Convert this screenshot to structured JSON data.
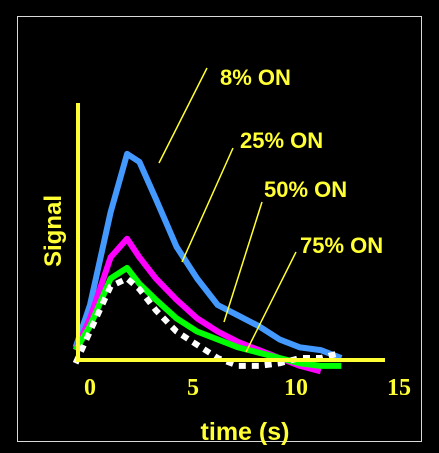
{
  "chart_data": {
    "type": "line",
    "title": "",
    "xlabel": "time (s)",
    "ylabel": "Signal",
    "xlim": [
      0,
      15
    ],
    "ylim": [
      0,
      1
    ],
    "x_ticks": [
      "0",
      "5",
      "10",
      "15"
    ],
    "grid": false,
    "series": [
      {
        "name": "8% ON",
        "color": "#4499ff",
        "x": [
          -0.7,
          0.0,
          1.0,
          1.8,
          2.4,
          3.2,
          4.2,
          5.2,
          6.2,
          7.2,
          8.2,
          9.2,
          10.2,
          11.2,
          12.2
        ],
        "y": [
          0.04,
          0.2,
          0.55,
          0.77,
          0.74,
          0.6,
          0.42,
          0.3,
          0.2,
          0.16,
          0.12,
          0.07,
          0.04,
          0.03,
          0.0
        ]
      },
      {
        "name": "25% ON",
        "color": "#ff00ff",
        "x": [
          -0.7,
          0.0,
          1.0,
          1.8,
          2.4,
          3.2,
          4.2,
          5.2,
          6.2,
          7.2,
          8.2,
          9.2,
          10.2,
          11.2
        ],
        "y": [
          0.03,
          0.15,
          0.38,
          0.45,
          0.38,
          0.3,
          0.22,
          0.15,
          0.1,
          0.06,
          0.03,
          0.0,
          -0.03,
          -0.05
        ]
      },
      {
        "name": "50% ON",
        "color": "#00ff00",
        "x": [
          -0.7,
          0.0,
          1.0,
          1.8,
          2.4,
          3.2,
          4.2,
          5.2,
          6.2,
          7.2,
          8.2,
          9.2,
          10.2,
          11.2,
          12.2
        ],
        "y": [
          0.03,
          0.12,
          0.3,
          0.34,
          0.28,
          0.22,
          0.15,
          0.1,
          0.07,
          0.04,
          0.02,
          0.0,
          -0.02,
          -0.03,
          -0.03
        ]
      },
      {
        "name": "75% ON",
        "color": "#ffffff",
        "x": [
          -0.7,
          0.0,
          1.0,
          1.8,
          2.4,
          3.2,
          4.2,
          5.2,
          6.2,
          7.2,
          8.2,
          9.2,
          10.2,
          11.2,
          12.2
        ],
        "y": [
          -0.02,
          0.1,
          0.27,
          0.3,
          0.26,
          0.18,
          0.1,
          0.05,
          0.0,
          -0.03,
          -0.03,
          -0.02,
          0.0,
          0.0,
          0.02
        ]
      }
    ],
    "annotations": [
      "8% ON",
      "25% ON",
      "50% ON",
      "75% ON"
    ]
  },
  "style": {
    "background": "#000000",
    "axis_color": "#ffff33",
    "text_color": "#ffff33",
    "border_color": "#d9d9d9"
  }
}
